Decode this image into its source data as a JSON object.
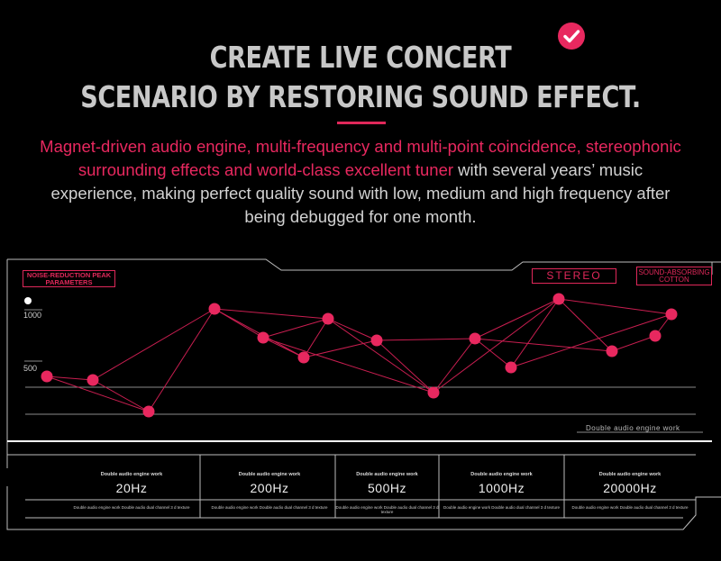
{
  "headline": {
    "line1": "CREATE LIVE CONCERT",
    "line2": "SCENARIO BY RESTORING SOUND EFFECT."
  },
  "icons": {
    "badge": "check-circle-icon"
  },
  "description": {
    "highlight": "Magnet-driven audio engine, multi-frequency and multi-point coincidence, stereophonic surrounding effects and world-class excellent tuner",
    "rest": " with several years’   music experience, making perfect quality sound with low, medium and high frequency after being debugged for one month."
  },
  "panel": {
    "tag_left": "NOISE-REDUCTION PEAK PARAMETERS",
    "tag_stereo": "STEREO",
    "tag_right": "SOUND-ABSORBING COTTON",
    "axis_1000": "1000",
    "axis_500": "500",
    "footnote": "Double audio engine work"
  },
  "colors": {
    "accent": "#e8285f",
    "line": "#c81e50",
    "frame": "#bdbdbd"
  },
  "frequencies": [
    {
      "label": "Double audio engine work",
      "value": "20Hz",
      "note": "Double audio engine work Double audio dual channel 3 d texture"
    },
    {
      "label": "Double audio engine work",
      "value": "200Hz",
      "note": "Double audio engine work Double audio dual channel 3 d texture"
    },
    {
      "label": "Double audio engine work",
      "value": "500Hz",
      "note": "Double audio engine work Double audio dual channel 3 d texture"
    },
    {
      "label": "Double audio engine work",
      "value": "1000Hz",
      "note": "Double audio engine work Double audio dual channel 3 d texture"
    },
    {
      "label": "Double audio engine work",
      "value": "20000Hz",
      "note": "Double audio engine work Double audio dual channel 3 d texture"
    }
  ]
}
